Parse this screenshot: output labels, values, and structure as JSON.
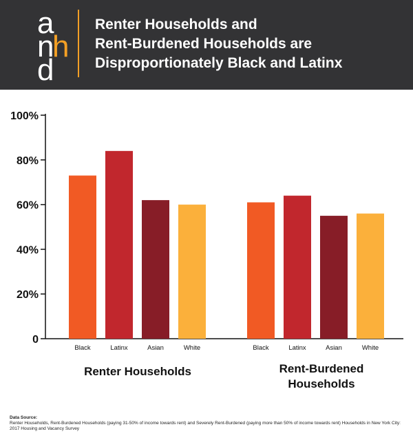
{
  "header": {
    "logo": {
      "l1": "a",
      "l2": "n",
      "l3": "h",
      "l4": "d"
    },
    "title_lines": [
      "Renter Households and",
      "Rent-Burdened Households are",
      "Disproportionately Black and Latinx"
    ]
  },
  "chart_data": {
    "type": "bar",
    "ylim": [
      0,
      100
    ],
    "yticks": [
      "0",
      "20%",
      "40%",
      "60%",
      "80%",
      "100%"
    ],
    "grid": false,
    "groups": [
      {
        "label": "Renter Households",
        "bars": [
          {
            "category": "Black",
            "value": 73,
            "color": "#f15a24"
          },
          {
            "category": "Latinx",
            "value": 84,
            "color": "#c1272d"
          },
          {
            "category": "Asian",
            "value": 62,
            "color": "#871d27"
          },
          {
            "category": "White",
            "value": 60,
            "color": "#fbb03b"
          }
        ]
      },
      {
        "label": "Rent-Burdened Households",
        "bars": [
          {
            "category": "Black",
            "value": 61,
            "color": "#f15a24"
          },
          {
            "category": "Latinx",
            "value": 64,
            "color": "#c1272d"
          },
          {
            "category": "Asian",
            "value": 55,
            "color": "#871d27"
          },
          {
            "category": "White",
            "value": 56,
            "color": "#fbb03b"
          }
        ]
      }
    ]
  },
  "group_labels": {
    "renter": "Renter Households",
    "rent_burdened_line1": "Rent-Burdened",
    "rent_burdened_line2": "Households"
  },
  "source": {
    "title": "Data Source:",
    "text": "Renter Households, Rent-Burdened Households (paying 31-50% of income towards rent) and Severely Rent-Burdened (paying more than 50% of income towards rent) Households in New York City: 2017 Housing and Vacancy Survey"
  }
}
